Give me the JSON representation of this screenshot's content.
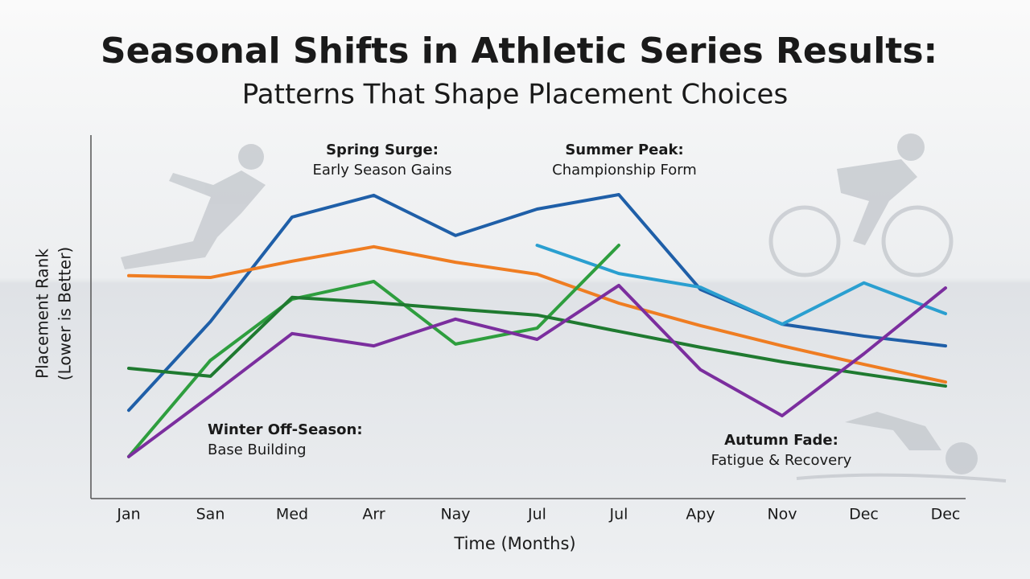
{
  "chart_data": {
    "type": "line",
    "title": "Seasonal Shifts in Athletic Series Results:",
    "subtitle": "Patterns That Shape Placement Choices",
    "x_label": "Time (Months)",
    "y_label": [
      "Placement Rank",
      "(Lower is Better)"
    ],
    "categories": [
      "Jan",
      "San",
      "Med",
      "Arr",
      "Nay",
      "Jul",
      "Jul",
      "Apy",
      "Nov",
      "Dec",
      "Dec"
    ],
    "ylim": [
      0,
      100
    ],
    "grid": false,
    "series": [
      {
        "color": "#1f5fa8",
        "values": [
          24.4,
          48.9,
          77.8,
          83.8,
          72.7,
          80,
          84,
          57.8,
          48.2,
          44.9,
          42.2
        ]
      },
      {
        "color": "#2a9fd0",
        "values": [
          null,
          null,
          null,
          null,
          null,
          70,
          62.2,
          58.4,
          48.2,
          59.6,
          51.1
        ]
      },
      {
        "color": "#ef7d22",
        "values": [
          61.6,
          61.1,
          65.6,
          69.6,
          65.3,
          62,
          54,
          47.8,
          42.2,
          37.1,
          32.2
        ]
      },
      {
        "color": "#2e9e3e",
        "values": [
          11.6,
          38.2,
          55.1,
          60,
          42.7,
          47.1,
          70,
          null,
          null,
          null,
          null
        ]
      },
      {
        "color": "#1f7a30",
        "values": [
          36,
          33.8,
          55.6,
          54.2,
          52.4,
          50.7,
          46.2,
          41.8,
          37.8,
          34.4,
          31.1
        ]
      },
      {
        "color": "#7b2e9e",
        "values": [
          11.6,
          28.4,
          45.6,
          42.2,
          49.6,
          44,
          58.9,
          35.6,
          22.9,
          40,
          58.2
        ]
      }
    ],
    "annotations": [
      {
        "title": "Spring Surge:",
        "text": "Early Season Gains"
      },
      {
        "title": "Summer Peak:",
        "text": "Championship Form"
      },
      {
        "title": "Winter Off-Season:",
        "text": "Base Building"
      },
      {
        "title": "Autumn Fade:",
        "text": "Fatigue & Recovery"
      }
    ]
  }
}
